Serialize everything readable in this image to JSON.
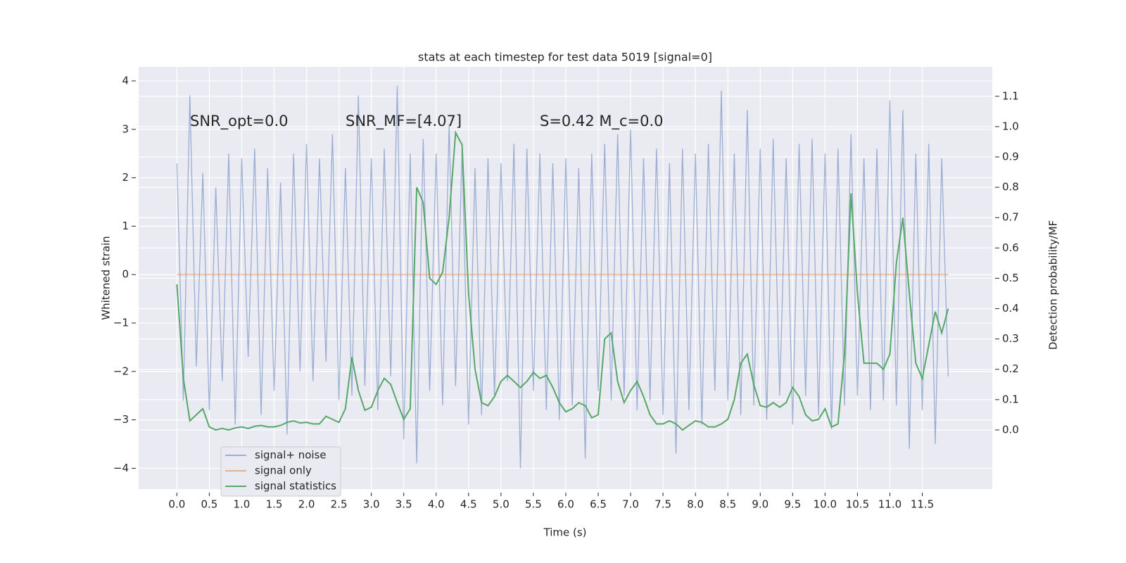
{
  "chart_data": {
    "type": "line",
    "title": "stats at each timestep for test data 5019 [signal=0]",
    "xlabel": "Time (s)",
    "ylabel": "Whitened strain",
    "y2label": "Detection probability/MF",
    "annotations": [
      "SNR_opt=0.0",
      "SNR_MF=[4.07]",
      "S=0.42   M_c=0.0"
    ],
    "grid": true,
    "legend": "lower left",
    "background": "#eaeaf2",
    "xlim": [
      -0.59,
      12.58
    ],
    "xticks": [
      {
        "value": 0,
        "label": "0.0"
      },
      0.5,
      {
        "value": 1,
        "label": "1.0"
      },
      1.5,
      {
        "value": 2,
        "label": "2.0"
      },
      2.5,
      {
        "value": 3,
        "label": "3.0"
      },
      3.5,
      {
        "value": 4,
        "label": "4.0"
      },
      4.5,
      {
        "value": 5,
        "label": "5.0"
      },
      5.5,
      {
        "value": 6,
        "label": "6.0"
      },
      6.5,
      {
        "value": 7,
        "label": "7.0"
      },
      7.5,
      {
        "value": 8,
        "label": "8.0"
      },
      8.5,
      {
        "value": 9,
        "label": "9.0"
      },
      9.5,
      {
        "value": 10,
        "label": "10.0"
      },
      10.5,
      {
        "value": 11,
        "label": "11.0"
      },
      11.5
    ],
    "ylim": [
      -4.43,
      4.29
    ],
    "yticks": [
      {
        "value": -4,
        "label": "−4"
      },
      {
        "value": -3,
        "label": "−3"
      },
      {
        "value": -2,
        "label": "−2"
      },
      {
        "value": -1,
        "label": "−1"
      },
      0,
      1,
      2,
      3,
      4
    ],
    "y2lim": [
      -0.195,
      1.197
    ],
    "y2ticks": [
      {
        "value": 0,
        "label": "0.0"
      },
      0.1,
      0.2,
      0.3,
      0.4,
      0.5,
      0.6,
      0.7,
      0.8,
      0.9,
      {
        "value": 1,
        "label": "1.0"
      },
      1.1
    ],
    "x": [
      0.0,
      0.1,
      0.2,
      0.3,
      0.4,
      0.5,
      0.6,
      0.7,
      0.8,
      0.9,
      1.0,
      1.1,
      1.2,
      1.3,
      1.4,
      1.5,
      1.6,
      1.7,
      1.8,
      1.9,
      2.0,
      2.1,
      2.2,
      2.3,
      2.4,
      2.5,
      2.6,
      2.7,
      2.8,
      2.9,
      3.0,
      3.1,
      3.2,
      3.3,
      3.4,
      3.5,
      3.6,
      3.7,
      3.8,
      3.9,
      4.0,
      4.1,
      4.2,
      4.3,
      4.4,
      4.5,
      4.6,
      4.7,
      4.8,
      4.9,
      5.0,
      5.1,
      5.2,
      5.3,
      5.4,
      5.5,
      5.6,
      5.7,
      5.8,
      5.9,
      6.0,
      6.1,
      6.2,
      6.3,
      6.4,
      6.5,
      6.6,
      6.7,
      6.8,
      6.9,
      7.0,
      7.1,
      7.2,
      7.3,
      7.4,
      7.5,
      7.6,
      7.7,
      7.8,
      7.9,
      8.0,
      8.1,
      8.2,
      8.3,
      8.4,
      8.5,
      8.6,
      8.7,
      8.8,
      8.9,
      9.0,
      9.1,
      9.2,
      9.3,
      9.4,
      9.5,
      9.6,
      9.7,
      9.8,
      9.9,
      10.0,
      10.1,
      10.2,
      10.3,
      10.4,
      10.5,
      10.6,
      10.7,
      10.8,
      10.9,
      11.0,
      11.1,
      11.2,
      11.3,
      11.4,
      11.5,
      11.6,
      11.7,
      11.8,
      11.9
    ],
    "series": [
      {
        "name": "signal+ noise",
        "color": "#4c72b0",
        "alpha": 0.5,
        "values": [
          2.3,
          -2.6,
          3.7,
          -1.9,
          2.1,
          -2.8,
          1.8,
          -2.2,
          2.5,
          -3.1,
          2.4,
          -1.7,
          2.6,
          -2.9,
          2.2,
          -2.4,
          1.9,
          -3.3,
          2.5,
          -2.0,
          2.7,
          -2.2,
          2.4,
          -1.8,
          2.9,
          -2.6,
          2.2,
          -2.5,
          3.7,
          -2.3,
          2.4,
          -2.8,
          2.6,
          -2.1,
          3.9,
          -3.4,
          2.5,
          -3.9,
          2.8,
          -2.4,
          2.5,
          -2.7,
          3.1,
          -2.3,
          2.6,
          -3.1,
          2.2,
          -2.9,
          2.4,
          -2.5,
          2.3,
          -2.2,
          2.7,
          -4.0,
          2.6,
          -2.4,
          2.5,
          -2.8,
          2.3,
          -3.0,
          2.4,
          -2.7,
          2.2,
          -3.8,
          2.5,
          -2.4,
          2.7,
          -2.6,
          2.9,
          -2.5,
          3.0,
          -2.8,
          2.4,
          -2.6,
          2.6,
          -2.9,
          2.3,
          -3.7,
          2.6,
          -2.8,
          2.5,
          -3.1,
          2.7,
          -2.4,
          3.8,
          -2.6,
          2.5,
          -2.9,
          3.4,
          -2.7,
          2.6,
          -3.0,
          2.8,
          -2.5,
          2.4,
          -3.1,
          2.7,
          -2.5,
          2.8,
          -2.9,
          2.5,
          -3.2,
          2.6,
          -2.7,
          2.9,
          -2.5,
          2.4,
          -2.8,
          2.6,
          -2.6,
          3.6,
          -2.7,
          3.4,
          -3.6,
          2.5,
          -2.8,
          2.7,
          -3.5,
          2.4,
          -2.1
        ]
      },
      {
        "name": "signal only",
        "color": "#dd8452",
        "alpha": 0.6,
        "values": [
          0,
          0,
          0,
          0,
          0,
          0,
          0,
          0,
          0,
          0,
          0,
          0,
          0,
          0,
          0,
          0,
          0,
          0,
          0,
          0,
          0,
          0,
          0,
          0,
          0,
          0,
          0,
          0,
          0,
          0,
          0,
          0,
          0,
          0,
          0,
          0,
          0,
          0,
          0,
          0,
          0,
          0,
          0,
          0,
          0,
          0,
          0,
          0,
          0,
          0,
          0,
          0,
          0,
          0,
          0,
          0,
          0,
          0,
          0,
          0,
          0,
          0,
          0,
          0,
          0,
          0,
          0,
          0,
          0,
          0,
          0,
          0,
          0,
          0,
          0,
          0,
          0,
          0,
          0,
          0,
          0,
          0,
          0,
          0,
          0,
          0,
          0,
          0,
          0,
          0,
          0,
          0,
          0,
          0,
          0,
          0,
          0,
          0,
          0,
          0,
          0,
          0,
          0,
          0,
          0,
          0,
          0,
          0,
          0,
          0,
          0,
          0,
          0,
          0,
          0,
          0,
          0,
          0,
          0,
          0
        ]
      },
      {
        "name": "signal statistics",
        "color": "#55a868",
        "alpha": 1,
        "axis": "y2",
        "values": [
          0.48,
          0.17,
          0.03,
          0.05,
          0.07,
          0.01,
          0.0,
          0.005,
          0.0,
          0.007,
          0.01,
          0.005,
          0.012,
          0.015,
          0.01,
          0.01,
          0.015,
          0.025,
          0.03,
          0.023,
          0.025,
          0.02,
          0.02,
          0.045,
          0.035,
          0.025,
          0.07,
          0.24,
          0.13,
          0.065,
          0.075,
          0.13,
          0.17,
          0.15,
          0.09,
          0.035,
          0.07,
          0.8,
          0.75,
          0.5,
          0.48,
          0.52,
          0.7,
          0.98,
          0.94,
          0.45,
          0.2,
          0.09,
          0.08,
          0.11,
          0.16,
          0.18,
          0.16,
          0.14,
          0.16,
          0.19,
          0.17,
          0.18,
          0.14,
          0.09,
          0.06,
          0.07,
          0.09,
          0.08,
          0.04,
          0.05,
          0.3,
          0.32,
          0.16,
          0.09,
          0.13,
          0.16,
          0.11,
          0.05,
          0.02,
          0.02,
          0.03,
          0.02,
          0.0,
          0.015,
          0.03,
          0.025,
          0.01,
          0.01,
          0.02,
          0.035,
          0.1,
          0.22,
          0.25,
          0.15,
          0.08,
          0.075,
          0.09,
          0.075,
          0.09,
          0.14,
          0.11,
          0.05,
          0.03,
          0.035,
          0.07,
          0.01,
          0.02,
          0.25,
          0.78,
          0.45,
          0.22,
          0.22,
          0.22,
          0.2,
          0.25,
          0.55,
          0.7,
          0.45,
          0.22,
          0.17,
          0.28,
          0.39,
          0.32,
          0.4
        ]
      }
    ]
  }
}
